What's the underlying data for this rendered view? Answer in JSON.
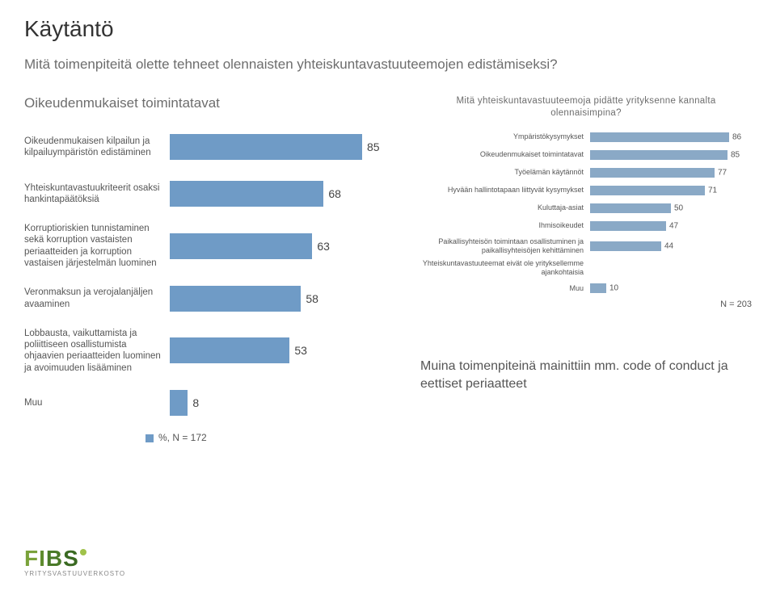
{
  "title": "Käytäntö",
  "subtitle": "Mitä toimenpiteitä olette tehneet olennaisten yhteiskuntavastuuteemojen edistämiseksi?",
  "left_chart": {
    "type": "bar",
    "heading": "Oikeudenmukaiset toimintatavat",
    "bar_color": "#6f9bc6",
    "value_fontsize": 14,
    "label_fontsize": 11.5,
    "max": 100,
    "items": [
      {
        "label": "Oikeudenmukaisen kilpailun ja kilpailuympäristön edistäminen",
        "value": 85
      },
      {
        "label": "Yhteiskuntavastuukriteerit osaksi hankintapäätöksiä",
        "value": 68
      },
      {
        "label": "Korruptioriskien tunnistaminen sekä korruption vastaisten periaatteiden ja korruption vastaisen järjestelmän luominen",
        "value": 63
      },
      {
        "label": "Veronmaksun ja verojalanjäljen avaaminen",
        "value": 58
      },
      {
        "label": "Lobbausta, vaikuttamista ja poliittiseen osallistumista ohjaavien periaatteiden luominen ja avoimuuden lisääminen",
        "value": 53
      },
      {
        "label": "Muu",
        "value": 8
      }
    ],
    "legend": "%, N = 172"
  },
  "right_chart": {
    "type": "bar",
    "title": "Mitä yhteiskuntavastuuteemoja pidätte yrityksenne kannalta olennaisimpina?",
    "bar_color": "#8aa9c6",
    "value_fontsize": 10,
    "label_fontsize": 9,
    "max": 100,
    "items": [
      {
        "label": "Ympäristökysymykset",
        "value": 86
      },
      {
        "label": "Oikeudenmukaiset toimintatavat",
        "value": 85
      },
      {
        "label": "Työelämän käytännöt",
        "value": 77
      },
      {
        "label": "Hyvään hallintotapaan liittyvät kysymykset",
        "value": 71
      },
      {
        "label": "Kuluttaja-asiat",
        "value": 50
      },
      {
        "label": "Ihmisoikeudet",
        "value": 47
      },
      {
        "label": "Paikallisyhteisön toimintaan osallistuminen ja paikallisyhteisöjen kehittäminen",
        "value": 44
      },
      {
        "label": "Yhteiskuntavastuuteemat eivät ole yrityksellemme ajankohtaisia",
        "value": 0
      },
      {
        "label": "Muu",
        "value": 10
      }
    ],
    "note": "N = 203"
  },
  "footnote": "Muina toimenpiteinä mainittiin mm. code of conduct ja eettiset periaatteet",
  "logo": {
    "text": "FIBS",
    "sub": "YRITYSVASTUUVERKOSTO",
    "colors": {
      "f": "#7aa23a",
      "i": "#5f8c2f",
      "b": "#4a7a28",
      "s": "#3a6a22",
      "dot": "#a0c24a"
    }
  }
}
